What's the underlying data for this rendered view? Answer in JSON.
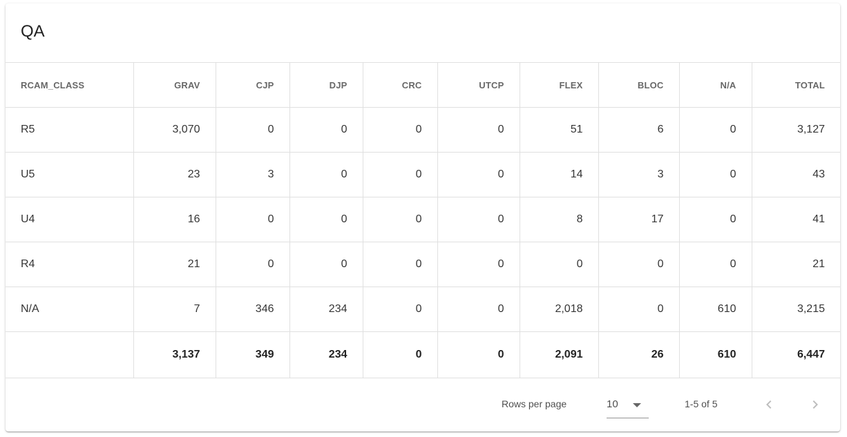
{
  "card": {
    "title": "QA"
  },
  "table": {
    "columns": [
      "RCAM_CLASS",
      "GRAV",
      "CJP",
      "DJP",
      "CRC",
      "UTCP",
      "FLEX",
      "BLOC",
      "N/A",
      "TOTAL"
    ],
    "rows": [
      [
        "R5",
        "3,070",
        "0",
        "0",
        "0",
        "0",
        "51",
        "6",
        "0",
        "3,127"
      ],
      [
        "U5",
        "23",
        "3",
        "0",
        "0",
        "0",
        "14",
        "3",
        "0",
        "43"
      ],
      [
        "U4",
        "16",
        "0",
        "0",
        "0",
        "0",
        "8",
        "17",
        "0",
        "41"
      ],
      [
        "R4",
        "21",
        "0",
        "0",
        "0",
        "0",
        "0",
        "0",
        "0",
        "21"
      ],
      [
        "N/A",
        "7",
        "346",
        "234",
        "0",
        "0",
        "2,018",
        "0",
        "610",
        "3,215"
      ]
    ],
    "totals": [
      "",
      "3,137",
      "349",
      "234",
      "0",
      "0",
      "2,091",
      "26",
      "610",
      "6,447"
    ]
  },
  "pagination": {
    "rows_per_page_label": "Rows per page",
    "rows_per_page_value": "10",
    "range_label": "1-5 of 5",
    "prev_icon": "chevron-left-icon",
    "next_icon": "chevron-right-icon"
  }
}
